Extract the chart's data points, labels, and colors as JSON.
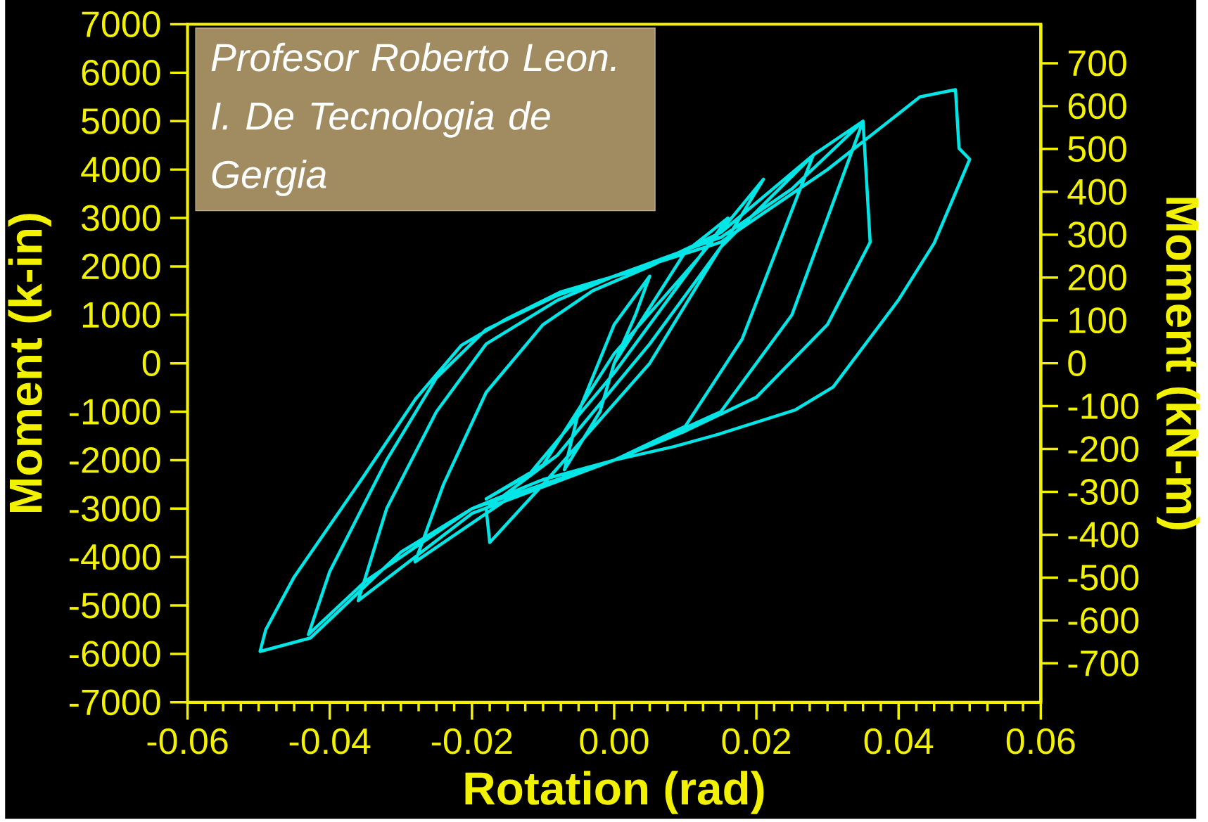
{
  "chart_data": {
    "type": "line",
    "xlabel": "Rotation (rad)",
    "ylabel": "Moment (k-in)",
    "y2label": "Moment (kN-m)",
    "annotations": [
      "Profesor  Roberto Leon.",
      "I. De Tecnologia de Gergia"
    ],
    "xlim": [
      -0.06,
      0.06
    ],
    "xticks": [
      -0.06,
      -0.04,
      -0.02,
      {
        "value": 0,
        "label": "0.00"
      },
      0.02,
      0.04,
      0.06
    ],
    "ylim": [
      -7000,
      7000
    ],
    "yticks": [
      -7000,
      -6000,
      -5000,
      -4000,
      -3000,
      -2000,
      -1000,
      0,
      1000,
      2000,
      3000,
      4000,
      5000,
      6000,
      7000
    ],
    "y2lim": [
      -791,
      791
    ],
    "y2ticks": [
      -700,
      -600,
      -500,
      -400,
      -300,
      -200,
      -100,
      0,
      100,
      200,
      300,
      400,
      500,
      600,
      700
    ],
    "series": [
      {
        "color": "#00e5e5",
        "x": [
          0,
          0.003,
          0.005,
          0,
          -0.005,
          -0.007,
          -0.002,
          0,
          0.01,
          0.016,
          0.012,
          0,
          -0.01,
          -0.018,
          -0.012,
          0,
          0.012,
          0.021,
          0.016,
          0.005,
          -0.008,
          -0.018,
          -0.0175,
          -0.01,
          0.005,
          0.015,
          0.028,
          0.018,
          0.01,
          0,
          -0.015,
          -0.028,
          -0.024,
          -0.018,
          -0.01,
          -0.003,
          0.005,
          0.015,
          0.028,
          0.035,
          0.025,
          0.015,
          0,
          -0.02,
          -0.036,
          -0.032,
          -0.025,
          -0.018,
          -0.008,
          0,
          0.015,
          0.025,
          0.035,
          0.036,
          0.03,
          0.02,
          0.01,
          0,
          -0.02,
          -0.035,
          -0.043,
          -0.04,
          -0.032,
          -0.025,
          -0.018,
          -0.008,
          0,
          0.015,
          0.03,
          0.043,
          0.048,
          0.0485,
          0.05,
          0.045,
          0.04,
          0.0308,
          0.0255,
          0.0148,
          0.0084,
          0,
          -0.01,
          -0.02,
          -0.03,
          -0.0427,
          -0.0498,
          -0.049,
          -0.045,
          -0.0354,
          -0.0279,
          -0.0215,
          -0.0151,
          -0.0076,
          -0.0023,
          0.005
        ],
        "values": [
          0,
          1000,
          1800,
          800,
          -1000,
          -2200,
          -1000,
          0,
          2300,
          3000,
          2200,
          200,
          -2100,
          -2800,
          -2300,
          -200,
          2200,
          3800,
          2600,
          400,
          -1900,
          -3000,
          -3700,
          -2500,
          0,
          2400,
          4300,
          500,
          -1300,
          -2000,
          -2800,
          -4100,
          -2500,
          -600,
          800,
          1500,
          2000,
          2700,
          4300,
          5000,
          1000,
          -1000,
          -2000,
          -3100,
          -4900,
          -3000,
          -1000,
          400,
          1300,
          1800,
          2600,
          3600,
          5000,
          2500,
          800,
          -700,
          -1400,
          -2000,
          -3000,
          -4500,
          -5600,
          -4300,
          -2000,
          -300,
          700,
          1400,
          1800,
          2500,
          4000,
          5500,
          5650,
          4440,
          4210,
          2480,
          1310,
          -490,
          -960,
          -1460,
          -1720,
          -2000,
          -2400,
          -3000,
          -3900,
          -5670,
          -5950,
          -5500,
          -4410,
          -2370,
          -730,
          370,
          920,
          1470,
          1700,
          2000
        ]
      }
    ]
  }
}
